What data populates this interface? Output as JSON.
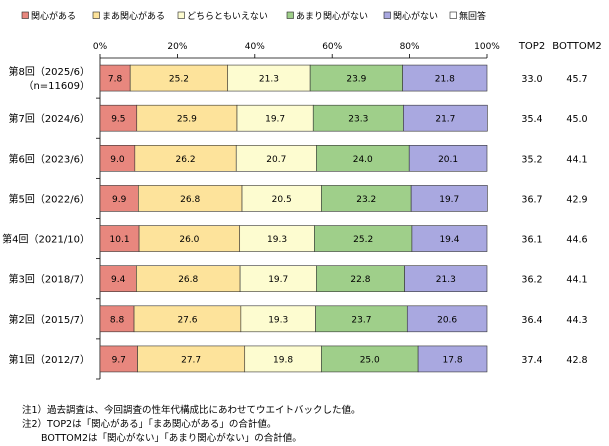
{
  "chart_data": {
    "type": "bar",
    "orientation": "horizontal",
    "stacked": true,
    "percent": true,
    "xlim": [
      0,
      100
    ],
    "x_ticks": [
      "0%",
      "20%",
      "40%",
      "60%",
      "80%",
      "100%"
    ],
    "legend_position": "top",
    "categories": [
      [
        "第8回（2025/6）",
        "（n=11609）"
      ],
      [
        "第7回（2024/6）"
      ],
      [
        "第6回（2023/6）"
      ],
      [
        "第5回（2022/6）"
      ],
      [
        "第4回（2021/10）"
      ],
      [
        "第3回（2018/7）"
      ],
      [
        "第2回（2015/7）"
      ],
      [
        "第1回（2012/7）"
      ]
    ],
    "series": [
      {
        "name": "関心がある",
        "color": "#e8877e",
        "values": [
          7.8,
          9.5,
          9.0,
          9.9,
          10.1,
          9.4,
          8.8,
          9.7
        ]
      },
      {
        "name": "まあ関心がある",
        "color": "#fde39b",
        "values": [
          25.2,
          25.9,
          26.2,
          26.8,
          26.0,
          26.8,
          27.6,
          27.7
        ]
      },
      {
        "name": "どちらともいえない",
        "color": "#fdfcd0",
        "values": [
          21.3,
          19.7,
          20.7,
          20.5,
          19.3,
          19.7,
          19.3,
          19.8
        ]
      },
      {
        "name": "あまり関心がない",
        "color": "#9fcf8a",
        "values": [
          23.9,
          23.3,
          24.0,
          23.2,
          25.2,
          22.8,
          23.7,
          25.0
        ]
      },
      {
        "name": "関心がない",
        "color": "#a9a8e0",
        "values": [
          21.8,
          21.7,
          20.1,
          19.7,
          19.4,
          21.3,
          20.6,
          17.8
        ]
      },
      {
        "name": "無回答",
        "color": "#ffffff",
        "values": [
          0,
          0,
          0,
          0,
          0,
          0,
          0,
          0
        ]
      }
    ],
    "summary_columns": [
      {
        "header": "TOP2",
        "values": [
          "33.0",
          "35.4",
          "35.2",
          "36.7",
          "36.1",
          "36.2",
          "36.4",
          "37.4"
        ]
      },
      {
        "header": "BOTTOM2",
        "values": [
          "45.7",
          "45.0",
          "44.1",
          "42.9",
          "44.6",
          "44.1",
          "44.3",
          "42.8"
        ]
      }
    ]
  },
  "notes": [
    "注1）過去調査は、今回調査の性年代構成比にあわせてウエイトバックした値。",
    "注2）TOP2は「関心がある」「まあ関心がある」の合計値。",
    "　　BOTTOM2は「関心がない」「あまり関心がない」の合計値。"
  ]
}
